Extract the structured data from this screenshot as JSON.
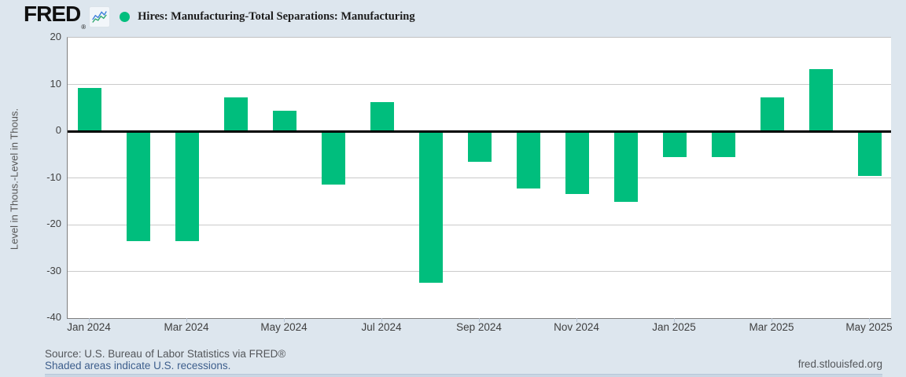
{
  "header": {
    "logo_text": "FRED",
    "logo_reg": "®",
    "chart_icon": "line-chart-icon"
  },
  "footer": {
    "source_line": "Source: U.S. Bureau of Labor Statistics via FRED®",
    "recession_note": "Shaded areas indicate U.S. recessions.",
    "site_url": "fred.stlouisfed.org"
  },
  "colors": {
    "bar_green": "#00be7d",
    "background": "#dde6ee",
    "plot_background": "#ffffff",
    "gridline": "#cacaca",
    "zero_line": "#000000",
    "link_blue": "#3d5e8c",
    "axis_text": "#424242"
  },
  "chart_data": {
    "type": "bar",
    "title": "Hires: Manufacturing-Total Separations: Manufacturing",
    "xlabel": "",
    "ylabel": "Level in Thous.-Level in Thous.",
    "ylim": [
      -40,
      20
    ],
    "y_ticks": [
      20,
      10,
      0,
      -10,
      -20,
      -30,
      -40
    ],
    "grid": true,
    "legend_position": "top-left",
    "categories": [
      "Jan 2024",
      "Feb 2024",
      "Mar 2024",
      "Apr 2024",
      "May 2024",
      "Jun 2024",
      "Jul 2024",
      "Aug 2024",
      "Sep 2024",
      "Oct 2024",
      "Nov 2024",
      "Dec 2024",
      "Jan 2025",
      "Feb 2025",
      "Mar 2025",
      "Apr 2025",
      "May 2025"
    ],
    "values": [
      9.2,
      -23.5,
      -23.5,
      7.3,
      4.3,
      -11.4,
      6.3,
      -32.5,
      -6.5,
      -12.3,
      -13.4,
      -15.2,
      -5.5,
      -5.5,
      7.3,
      13.3,
      -9.6
    ],
    "x_tick_labels": [
      "Jan 2024",
      "Mar 2024",
      "May 2024",
      "Jul 2024",
      "Sep 2024",
      "Nov 2024",
      "Jan 2025",
      "Mar 2025",
      "May 2025"
    ]
  }
}
